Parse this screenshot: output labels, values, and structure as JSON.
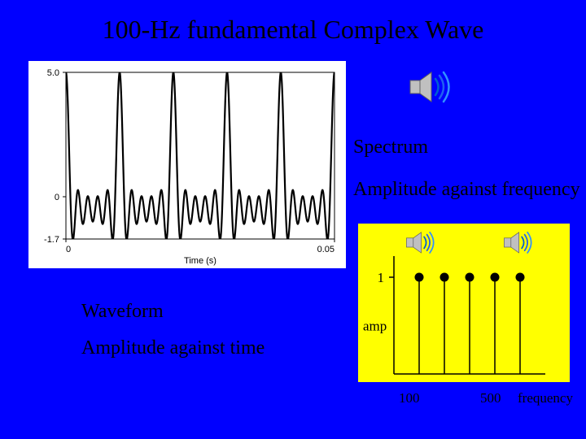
{
  "title": "100-Hz fundamental Complex Wave",
  "labels": {
    "spectrum": "Spectrum",
    "amp_vs_freq": "Amplitude against frequency",
    "waveform": "Waveform",
    "amp_vs_time": "Amplitude against time"
  },
  "waveform": {
    "panel_bg": "#ffffff",
    "line_color": "#000000",
    "line_width": 2.2,
    "xlim": [
      0,
      0.05
    ],
    "ylim": [
      -1.7,
      5.0
    ],
    "xlabel": "Time (s)",
    "ytick_labels": [
      "5.0",
      "0",
      "-1.7"
    ],
    "ytick_vals": [
      5.0,
      0,
      -1.7
    ],
    "xtick_labels": [
      "0",
      "0.05"
    ],
    "xtick_vals": [
      0,
      0.05
    ],
    "axis_font_size": 11,
    "fundamental_hz": 100,
    "harmonics": [
      {
        "n": 1,
        "amp": 1.0
      },
      {
        "n": 2,
        "amp": 1.0
      },
      {
        "n": 3,
        "amp": 1.0
      },
      {
        "n": 4,
        "amp": 1.0
      },
      {
        "n": 5,
        "amp": 1.0
      }
    ]
  },
  "spectrum": {
    "panel_bg": "#ffff00",
    "axis_color": "#000000",
    "axis_width": 1.5,
    "stem_color": "#000000",
    "stem_width": 1.5,
    "marker_fill": "#000000",
    "marker_radius": 5.5,
    "y_label": "amp",
    "y_tick_label": "1",
    "x_labels": {
      "low": "100",
      "high": "500",
      "axis": "frequency"
    },
    "freq_range": [
      0,
      600
    ],
    "stems": [
      {
        "freq": 100,
        "amp": 1
      },
      {
        "freq": 200,
        "amp": 1
      },
      {
        "freq": 300,
        "amp": 1
      },
      {
        "freq": 400,
        "amp": 1
      },
      {
        "freq": 500,
        "amp": 1
      }
    ],
    "label_font_size": 17
  },
  "speaker_icon": {
    "body_color": "#c0c0c0",
    "body_edge": "#606060",
    "wave_colors": [
      "#0060d0",
      "#2060f0",
      "#3090ff"
    ]
  }
}
